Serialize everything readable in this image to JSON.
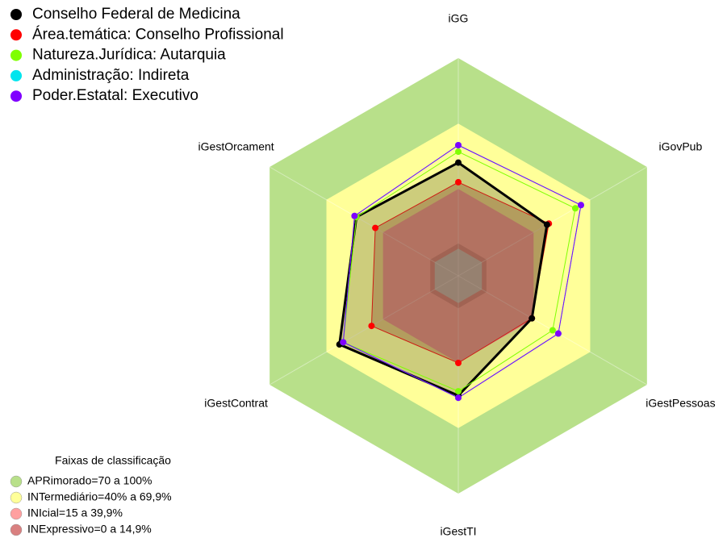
{
  "chart_data": {
    "type": "radar",
    "categories": [
      "iGG",
      "iGovPub",
      "iGestPessoas",
      "iGestTI",
      "iGestContrat",
      "iGestOrcament"
    ],
    "rlim": [
      0,
      100
    ],
    "series": [
      {
        "name": "Conselho Federal de Medicina",
        "color": "#000000",
        "values": [
          52,
          47,
          39,
          55,
          63,
          54
        ]
      },
      {
        "name": "Área.temática: Conselho Profissional",
        "color": "#ff0000",
        "values": [
          43,
          48,
          39,
          40,
          46,
          44
        ]
      },
      {
        "name": "Natureza.Jurídica: Autarquia",
        "color": "#7fff00",
        "values": [
          57,
          62,
          50,
          53,
          61,
          54
        ]
      },
      {
        "name": "Administração: Indireta",
        "color": "#00e5ee",
        "values": [
          60,
          65,
          53,
          56,
          61,
          55
        ]
      },
      {
        "name": "Poder.Estatal: Executivo",
        "color": "#8000ff",
        "values": [
          60,
          65,
          53,
          56,
          61,
          55
        ]
      }
    ],
    "bands": {
      "title": "Faixas de classificação",
      "items": [
        {
          "label": "APRimorado=70 a 100%",
          "color": "#b8e08a",
          "from": 70,
          "to": 100
        },
        {
          "label": "INTermediário=40% a 69,9%",
          "color": "#ffff99",
          "from": 40,
          "to": 69.9
        },
        {
          "label": "INIcial=15 a 39,9%",
          "color": "#ffa0a0",
          "from": 15,
          "to": 39.9
        },
        {
          "label": "INExpressivo=0 a 14,9%",
          "color": "#d98080",
          "from": 0,
          "to": 14.9
        }
      ]
    }
  }
}
